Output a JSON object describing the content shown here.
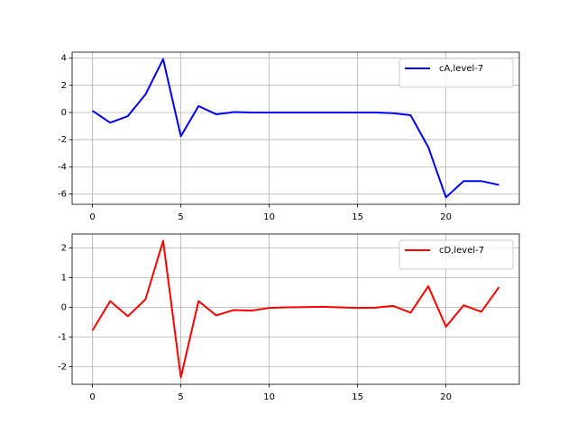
{
  "chart_data": [
    {
      "type": "line",
      "x": [
        0,
        1,
        2,
        3,
        4,
        5,
        6,
        7,
        8,
        9,
        10,
        11,
        12,
        13,
        14,
        15,
        16,
        17,
        18,
        19,
        20,
        21,
        22,
        23
      ],
      "series": [
        {
          "name": "cA,level-7",
          "color": "#0000ff",
          "values": [
            0.13,
            -0.75,
            -0.27,
            1.33,
            3.93,
            -1.75,
            0.47,
            -0.13,
            0.03,
            0,
            0,
            0,
            0,
            0,
            0,
            0,
            0,
            -0.05,
            -0.2,
            -2.55,
            -6.25,
            -5.05,
            -5.05,
            -5.33
          ]
        }
      ],
      "xlim": [
        -1.15,
        24.15
      ],
      "xticks": [
        0,
        5,
        10,
        15,
        20
      ],
      "ylim": [
        -6.76,
        4.44
      ],
      "yticks": [
        -6,
        -4,
        -2,
        0,
        2,
        4
      ],
      "grid": true,
      "legend": "upper-right"
    },
    {
      "type": "line",
      "x": [
        0,
        1,
        2,
        3,
        4,
        5,
        6,
        7,
        8,
        9,
        10,
        11,
        12,
        13,
        14,
        15,
        16,
        17,
        18,
        19,
        20,
        21,
        22,
        23
      ],
      "series": [
        {
          "name": "cD,level-7",
          "color": "#ff0000",
          "values": [
            -0.78,
            0.21,
            -0.3,
            0.27,
            2.24,
            -2.36,
            0.21,
            -0.27,
            -0.09,
            -0.11,
            -0.02,
            0,
            0.01,
            0.02,
            0,
            -0.02,
            -0.01,
            0.05,
            -0.18,
            0.71,
            -0.65,
            0.07,
            -0.15,
            0.68
          ]
        }
      ],
      "xlim": [
        -1.15,
        24.15
      ],
      "xticks": [
        0,
        5,
        10,
        15,
        20
      ],
      "ylim": [
        -2.59,
        2.47
      ],
      "yticks": [
        -2,
        -1,
        0,
        1,
        2
      ],
      "grid": true,
      "legend": "upper-right"
    }
  ]
}
